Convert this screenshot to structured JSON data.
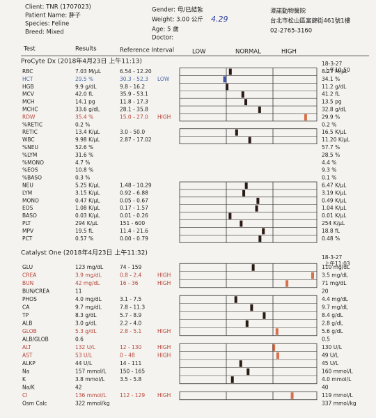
{
  "header": {
    "client": "Client: TNR (1707023)",
    "patient": "Patient Name: 胖子",
    "species": "Species: Feline",
    "breed": "Breed: Mixed",
    "gender": "Gender: 母/已結紮",
    "weight": "Weight: 3.00 公斤",
    "handwritten_note": "4.29",
    "age": "Age: 5 歲",
    "doctor": "Doctor:",
    "clinic": "澄諾動物醫院",
    "address": "台北市松山區富錦街461號1樓",
    "phone": "02-2765-3160"
  },
  "columns": {
    "test": "Test",
    "results": "Results",
    "reference": "Reference Interval",
    "low": "LOW",
    "normal": "NORMAL",
    "high": "HIGH"
  },
  "sections": [
    {
      "title": "ProCyte Dx (2018年4月23日 上午11:13)",
      "prev_date": "18-3-27",
      "prev_time": "上午10:50",
      "rows": [
        {
          "test": "RBC",
          "result": "7.03 M/μL",
          "ref": "6.54 - 12.20",
          "previous": "8.27 M/μL"
        },
        {
          "test": "HCT",
          "result": "29.5 %",
          "ref": "30.3 - 52.3",
          "flag": "LOW",
          "previous": "34.1 %"
        },
        {
          "test": "HGB",
          "result": "9.9 g/dL",
          "ref": "9.8 - 16.2",
          "previous": "11.2 g/dL"
        },
        {
          "test": "MCV",
          "result": "42.0 fL",
          "ref": "35.9 - 53.1",
          "previous": "41.2 fL"
        },
        {
          "test": "MCH",
          "result": "14.1 pg",
          "ref": "11.8 - 17.3",
          "previous": "13.5 pg"
        },
        {
          "test": "MCHC",
          "result": "33.6 g/dL",
          "ref": "28.1 - 35.8",
          "previous": "32.8 g/dL"
        },
        {
          "test": "RDW",
          "result": "35.4 %",
          "ref": "15.0 - 27.0",
          "flag": "HIGH",
          "previous": "29.9 %"
        },
        {
          "test": "%RETIC",
          "result": "0.2 %",
          "previous": "0.2 %"
        },
        {
          "test": "RETIC",
          "result": "13.4 K/μL",
          "ref": "3.0 - 50.0",
          "previous": "16.5 K/μL"
        },
        {
          "test": "WBC",
          "result": "9.98 K/μL",
          "ref": "2.87 - 17.02",
          "previous": "11.20 K/μL"
        },
        {
          "test": "%NEU",
          "result": "52.6 %",
          "previous": "57.7 %"
        },
        {
          "test": "%LYM",
          "result": "31.6 %",
          "previous": "28.5 %"
        },
        {
          "test": "%MONO",
          "result": "4.7 %",
          "previous": "4.4 %"
        },
        {
          "test": "%EOS",
          "result": "10.8 %",
          "previous": "9.3 %"
        },
        {
          "test": "%BASO",
          "result": "0.3 %",
          "previous": "0.1 %"
        },
        {
          "test": "NEU",
          "result": "5.25 K/μL",
          "ref": "1.48 - 10.29",
          "previous": "6.47 K/μL"
        },
        {
          "test": "LYM",
          "result": "3.15 K/μL",
          "ref": "0.92 - 6.88",
          "previous": "3.19 K/μL"
        },
        {
          "test": "MONO",
          "result": "0.47 K/μL",
          "ref": "0.05 - 0.67",
          "previous": "0.49 K/μL"
        },
        {
          "test": "EOS",
          "result": "1.08 K/μL",
          "ref": "0.17 - 1.57",
          "previous": "1.04 K/μL"
        },
        {
          "test": "BASO",
          "result": "0.03 K/μL",
          "ref": "0.01 - 0.26",
          "previous": "0.01 K/μL"
        },
        {
          "test": "PLT",
          "result": "294 K/μL",
          "ref": "151 - 600",
          "previous": "254 K/μL"
        },
        {
          "test": "MPV",
          "result": "19.5 fL",
          "ref": "11.4 - 21.6",
          "previous": "18.8 fL"
        },
        {
          "test": "PCT",
          "result": "0.57 %",
          "ref": "0.00 - 0.79",
          "previous": "0.48 %"
        }
      ]
    },
    {
      "title": "Catalyst One (2018年4月23日 上午11:32)",
      "prev_date": "18-3-27",
      "prev_time": "上午11:03",
      "rows": [
        {
          "test": "GLU",
          "result": "123 mg/dL",
          "ref": "74 - 159",
          "previous": "110 mg/dL"
        },
        {
          "test": "CREA",
          "result": "3.9 mg/dL",
          "ref": "0.8 - 2.4",
          "flag": "HIGH",
          "previous": "3.5 mg/dL"
        },
        {
          "test": "BUN",
          "result": "42 mg/dL",
          "ref": "16 - 36",
          "flag": "HIGH",
          "previous": "71 mg/dL"
        },
        {
          "test": "BUN/CREA",
          "result": "11",
          "previous": "20"
        },
        {
          "test": "PHOS",
          "result": "4.0 mg/dL",
          "ref": "3.1 - 7.5",
          "previous": "4.4 mg/dL"
        },
        {
          "test": "CA",
          "result": "9.7 mg/dL",
          "ref": "7.8 - 11.3",
          "previous": "9.7 mg/dL"
        },
        {
          "test": "TP",
          "result": "8.3 g/dL",
          "ref": "5.7 - 8.9",
          "previous": "8.4 g/dL"
        },
        {
          "test": "ALB",
          "result": "3.0 g/dL",
          "ref": "2.2 - 4.0",
          "previous": "2.8 g/dL"
        },
        {
          "test": "GLOB",
          "result": "5.3 g/dL",
          "ref": "2.8 - 5.1",
          "flag": "HIGH",
          "previous": "5.6 g/dL"
        },
        {
          "test": "ALB/GLOB",
          "result": "0.6",
          "previous": "0.5"
        },
        {
          "test": "ALT",
          "result": "132 U/L",
          "ref": "12 - 130",
          "flag": "HIGH",
          "previous": "130 U/L"
        },
        {
          "test": "AST",
          "result": "53 U/L",
          "ref": "0 - 48",
          "flag": "HIGH",
          "previous": "49 U/L"
        },
        {
          "test": "ALKP",
          "result": "44 U/L",
          "ref": "14 - 111",
          "previous": "45 U/L"
        },
        {
          "test": "Na",
          "result": "157 mmol/L",
          "ref": "150 - 165",
          "previous": "160 mmol/L"
        },
        {
          "test": "K",
          "result": "3.8 mmol/L",
          "ref": "3.5 - 5.8",
          "previous": "4.0 mmol/L"
        },
        {
          "test": "Na/K",
          "result": "42",
          "previous": "40"
        },
        {
          "test": "Cl",
          "result": "136 mmol/L",
          "ref": "112 - 129",
          "flag": "HIGH",
          "previous": "119 mmol/L"
        },
        {
          "test": "Osm Calc",
          "result": "322 mmol/kg",
          "previous": "337 mmol/kg"
        }
      ]
    }
  ]
}
